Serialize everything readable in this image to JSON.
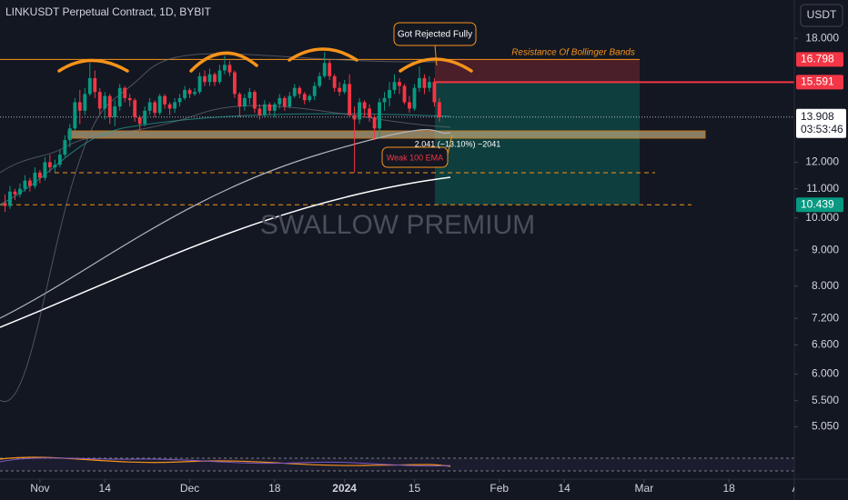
{
  "chart_data": {
    "type": "candlestick",
    "title": "LINKUSDT Perpetual Contract, 1D, BYBIT",
    "currency": "USDT",
    "watermark": "SWALLOW PREMIUM",
    "annotations": {
      "rejected": "Got Rejected Fully",
      "resistance": "Resistance Of Bollinger Bands",
      "ema": "Weak 100 EMA",
      "measure": "2.041 (−13.10%) −2041"
    },
    "log_scale": true,
    "up_color": "#089981",
    "down_color": "#f23645",
    "ylim": [
      4.75,
      20.4
    ],
    "yticks": [
      {
        "value": 18,
        "label": "18.000"
      },
      {
        "value": 12,
        "label": "12.000"
      },
      {
        "value": 11,
        "label": "11.000"
      },
      {
        "value": 10,
        "label": "10.000"
      },
      {
        "value": 9,
        "label": "9.000"
      },
      {
        "value": 8,
        "label": "8.000"
      },
      {
        "value": 7.2,
        "label": "7.200"
      },
      {
        "value": 6.6,
        "label": "6.600"
      },
      {
        "value": 6,
        "label": "6.000"
      },
      {
        "value": 5.5,
        "label": "5.500"
      },
      {
        "value": 5.05,
        "label": "5.050"
      }
    ],
    "xlim": [
      "2023-10-24",
      "2024-04-01"
    ],
    "xticks": [
      {
        "value": "2023-11-01",
        "label": "Nov"
      },
      {
        "value": "2023-11-14",
        "label": "14"
      },
      {
        "value": "2023-12-01",
        "label": "Dec"
      },
      {
        "value": "2023-12-18",
        "label": "18"
      },
      {
        "value": "2024-01-01",
        "label": "2024"
      },
      {
        "value": "2024-01-15",
        "label": "15"
      },
      {
        "value": "2024-02-01",
        "label": "Feb"
      },
      {
        "value": "2024-02-14",
        "label": "14"
      },
      {
        "value": "2024-03-01",
        "label": "Mar"
      },
      {
        "value": "2024-03-18",
        "label": "18"
      },
      {
        "value": "2024-04-01",
        "label": "Ap"
      }
    ],
    "stop": 16.798,
    "entry": 15.591,
    "target": 10.439,
    "last_price": 13.908,
    "countdown": "03:53:46",
    "x": [
      "2023-10-25",
      "2023-10-26",
      "2023-10-27",
      "2023-10-28",
      "2023-10-29",
      "2023-10-30",
      "2023-10-31",
      "2023-11-01",
      "2023-11-02",
      "2023-11-03",
      "2023-11-04",
      "2023-11-05",
      "2023-11-06",
      "2023-11-07",
      "2023-11-08",
      "2023-11-09",
      "2023-11-10",
      "2023-11-11",
      "2023-11-12",
      "2023-11-13",
      "2023-11-14",
      "2023-11-15",
      "2023-11-16",
      "2023-11-17",
      "2023-11-18",
      "2023-11-19",
      "2023-11-20",
      "2023-11-21",
      "2023-11-22",
      "2023-11-23",
      "2023-11-24",
      "2023-11-25",
      "2023-11-26",
      "2023-11-27",
      "2023-11-28",
      "2023-11-29",
      "2023-11-30",
      "2023-12-01",
      "2023-12-02",
      "2023-12-03",
      "2023-12-04",
      "2023-12-05",
      "2023-12-06",
      "2023-12-07",
      "2023-12-08",
      "2023-12-09",
      "2023-12-10",
      "2023-12-11",
      "2023-12-12",
      "2023-12-13",
      "2023-12-14",
      "2023-12-15",
      "2023-12-16",
      "2023-12-17",
      "2023-12-18",
      "2023-12-19",
      "2023-12-20",
      "2023-12-21",
      "2023-12-22",
      "2023-12-23",
      "2023-12-24",
      "2023-12-25",
      "2023-12-26",
      "2023-12-27",
      "2023-12-28",
      "2023-12-29",
      "2023-12-30",
      "2023-12-31",
      "2024-01-01",
      "2024-01-02",
      "2024-01-03",
      "2024-01-04",
      "2024-01-05",
      "2024-01-06",
      "2024-01-07",
      "2024-01-08",
      "2024-01-09",
      "2024-01-10",
      "2024-01-11",
      "2024-01-12",
      "2024-01-13",
      "2024-01-14",
      "2024-01-15",
      "2024-01-16",
      "2024-01-17",
      "2024-01-18",
      "2024-01-19",
      "2024-01-20"
    ],
    "candles": [
      [
        10.5,
        10.8,
        10.2,
        10.4
      ],
      [
        10.4,
        11.1,
        10.3,
        10.9
      ],
      [
        10.9,
        11.0,
        10.6,
        10.8
      ],
      [
        10.8,
        11.2,
        10.7,
        11.0
      ],
      [
        11.0,
        11.5,
        10.9,
        11.3
      ],
      [
        11.3,
        11.4,
        10.9,
        11.1
      ],
      [
        11.1,
        11.8,
        11.0,
        11.6
      ],
      [
        11.6,
        11.7,
        11.2,
        11.4
      ],
      [
        11.4,
        12.2,
        11.3,
        12.0
      ],
      [
        12.0,
        12.3,
        11.6,
        11.8
      ],
      [
        11.8,
        12.1,
        11.6,
        11.9
      ],
      [
        11.9,
        12.5,
        11.8,
        12.3
      ],
      [
        12.3,
        13.1,
        12.2,
        12.9
      ],
      [
        12.9,
        13.6,
        12.6,
        13.4
      ],
      [
        13.4,
        14.8,
        13.3,
        14.6
      ],
      [
        14.6,
        15.2,
        13.6,
        14.2
      ],
      [
        14.2,
        15.3,
        14.0,
        15.0
      ],
      [
        15.0,
        16.6,
        14.9,
        15.8
      ],
      [
        15.8,
        16.2,
        14.8,
        15.1
      ],
      [
        15.1,
        15.3,
        14.0,
        14.3
      ],
      [
        14.3,
        15.1,
        13.8,
        14.9
      ],
      [
        14.9,
        15.0,
        13.6,
        13.9
      ],
      [
        13.9,
        14.7,
        13.5,
        14.4
      ],
      [
        14.4,
        15.5,
        14.2,
        15.3
      ],
      [
        15.3,
        15.4,
        14.6,
        14.8
      ],
      [
        14.8,
        15.0,
        14.4,
        14.7
      ],
      [
        14.7,
        14.8,
        13.7,
        13.9
      ],
      [
        13.9,
        14.0,
        13.2,
        13.6
      ],
      [
        13.6,
        14.4,
        13.5,
        14.2
      ],
      [
        14.2,
        14.8,
        14.0,
        14.6
      ],
      [
        14.6,
        14.7,
        13.9,
        14.1
      ],
      [
        14.1,
        15.0,
        14.0,
        14.9
      ],
      [
        14.9,
        15.0,
        14.3,
        14.5
      ],
      [
        14.5,
        14.6,
        14.0,
        14.3
      ],
      [
        14.3,
        14.8,
        14.1,
        14.6
      ],
      [
        14.6,
        15.0,
        14.4,
        14.8
      ],
      [
        14.8,
        15.4,
        14.7,
        15.2
      ],
      [
        15.2,
        15.3,
        14.8,
        15.0
      ],
      [
        15.0,
        15.3,
        14.9,
        15.1
      ],
      [
        15.1,
        16.1,
        15.0,
        15.9
      ],
      [
        15.9,
        16.2,
        15.4,
        15.6
      ],
      [
        15.6,
        16.3,
        15.4,
        16.0
      ],
      [
        16.0,
        16.1,
        15.4,
        15.6
      ],
      [
        15.6,
        16.5,
        15.5,
        16.2
      ],
      [
        16.2,
        17.0,
        16.0,
        16.5
      ],
      [
        16.5,
        16.7,
        15.9,
        16.1
      ],
      [
        16.1,
        16.2,
        14.8,
        15.0
      ],
      [
        15.0,
        15.1,
        13.9,
        14.4
      ],
      [
        14.4,
        15.0,
        14.2,
        14.8
      ],
      [
        14.8,
        15.3,
        14.5,
        15.1
      ],
      [
        15.1,
        15.2,
        14.1,
        14.3
      ],
      [
        14.3,
        14.5,
        13.8,
        14.0
      ],
      [
        14.0,
        14.7,
        13.9,
        14.5
      ],
      [
        14.5,
        14.6,
        14.0,
        14.2
      ],
      [
        14.2,
        14.6,
        13.9,
        14.5
      ],
      [
        14.5,
        15.0,
        14.3,
        14.8
      ],
      [
        14.8,
        14.9,
        14.2,
        14.4
      ],
      [
        14.4,
        15.1,
        14.3,
        14.9
      ],
      [
        14.9,
        15.5,
        14.8,
        15.3
      ],
      [
        15.3,
        15.4,
        14.8,
        15.0
      ],
      [
        15.0,
        15.1,
        14.5,
        14.7
      ],
      [
        14.7,
        15.0,
        14.6,
        14.9
      ],
      [
        14.9,
        15.6,
        14.7,
        15.4
      ],
      [
        15.4,
        16.1,
        15.3,
        15.9
      ],
      [
        15.9,
        17.2,
        15.8,
        16.6
      ],
      [
        16.6,
        16.8,
        15.7,
        15.9
      ],
      [
        15.9,
        16.0,
        15.1,
        15.3
      ],
      [
        15.3,
        15.6,
        14.9,
        15.1
      ],
      [
        15.1,
        15.7,
        15.0,
        15.5
      ],
      [
        15.5,
        16.0,
        13.9,
        14.0
      ],
      [
        14.0,
        14.4,
        11.6,
        13.8
      ],
      [
        13.8,
        14.8,
        13.6,
        14.6
      ],
      [
        14.6,
        14.7,
        13.9,
        14.3
      ],
      [
        14.3,
        14.5,
        13.7,
        13.9
      ],
      [
        13.9,
        14.0,
        12.9,
        13.4
      ],
      [
        13.4,
        14.8,
        13.0,
        14.6
      ],
      [
        14.6,
        15.1,
        14.2,
        14.8
      ],
      [
        14.8,
        15.6,
        14.4,
        15.2
      ],
      [
        15.2,
        16.0,
        15.0,
        15.6
      ],
      [
        15.6,
        15.8,
        15.0,
        15.4
      ],
      [
        15.4,
        15.5,
        14.5,
        14.6
      ],
      [
        14.6,
        14.9,
        14.1,
        14.3
      ],
      [
        14.3,
        15.5,
        14.2,
        15.3
      ],
      [
        15.3,
        16.4,
        15.1,
        15.8
      ],
      [
        15.8,
        16.0,
        15.0,
        15.3
      ],
      [
        15.3,
        15.9,
        15.1,
        15.6
      ],
      [
        15.6,
        15.8,
        14.4,
        14.6
      ],
      [
        14.6,
        14.8,
        13.7,
        13.9
      ]
    ]
  }
}
